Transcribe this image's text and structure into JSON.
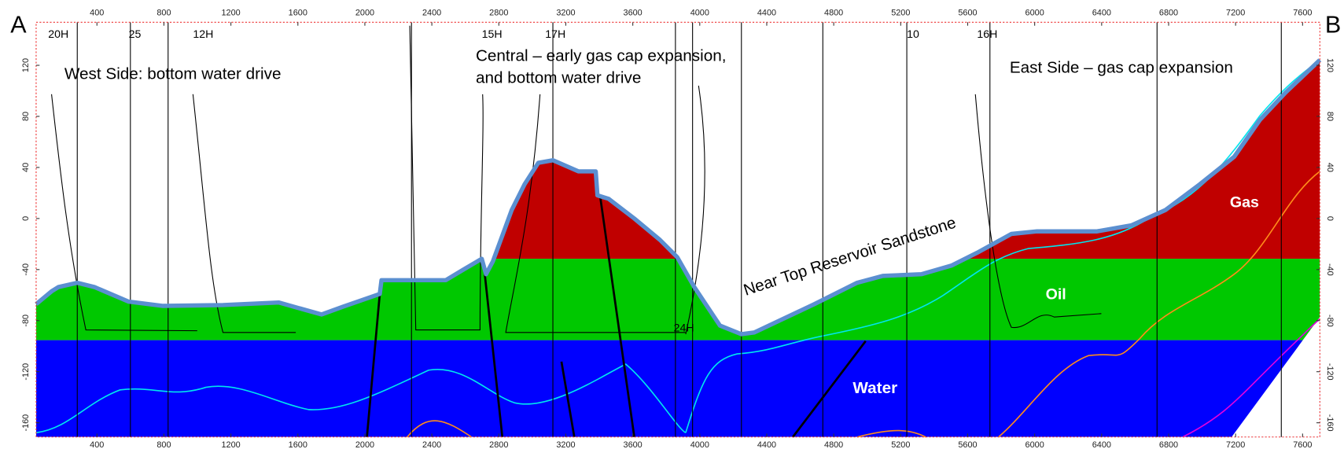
{
  "corners": {
    "left": "A",
    "right": "B"
  },
  "x_axis": {
    "ticks": [
      400,
      800,
      1200,
      1600,
      2000,
      2400,
      2800,
      3200,
      3600,
      4000,
      4400,
      4800,
      5200,
      5600,
      6000,
      6400,
      6800,
      7200,
      7600
    ]
  },
  "y_axis": {
    "ticks": [
      120,
      80,
      40,
      0,
      -40,
      -80,
      -120,
      -160
    ]
  },
  "annotations": {
    "west": "West Side: bottom  water drive",
    "central_1": "Central – early gas cap expansion,",
    "central_2": "and bottom  water drive",
    "east": "East Side – gas cap expansion",
    "horizon": "Near Top Reservoir Sandstone"
  },
  "zones": {
    "gas": "Gas",
    "oil": "Oil",
    "water": "Water"
  },
  "wells": [
    {
      "label": "20H"
    },
    {
      "label": "25"
    },
    {
      "label": "12H"
    },
    {
      "label": "15H"
    },
    {
      "label": "17H"
    },
    {
      "label": "10"
    },
    {
      "label": "16H"
    },
    {
      "label": "24H"
    }
  ]
}
